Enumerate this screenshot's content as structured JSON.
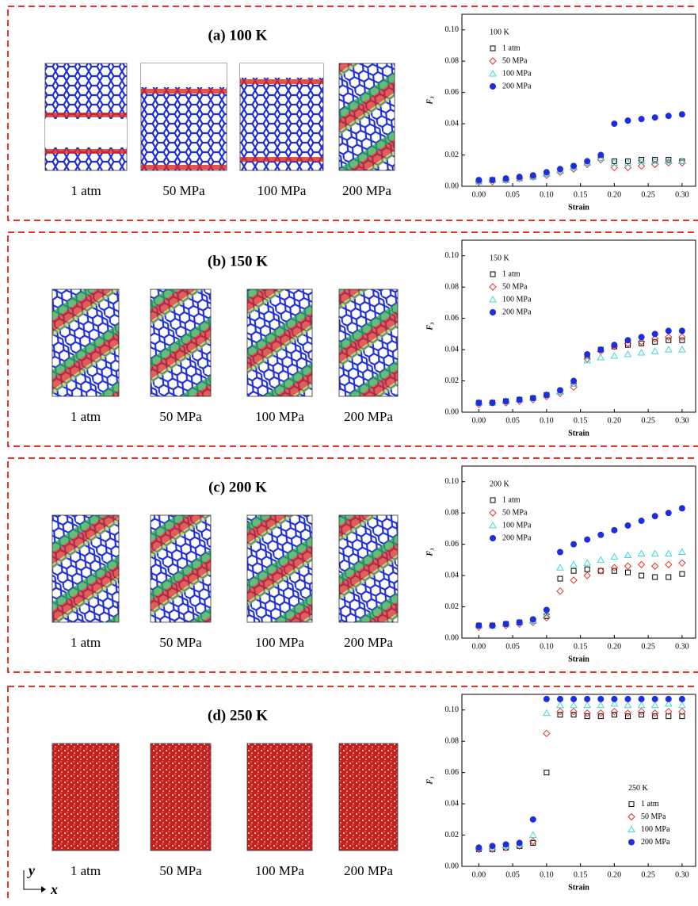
{
  "panels": [
    {
      "title": "(a) 100 K",
      "snapshot_labels": [
        "1 atm",
        "50 MPa",
        "100 MPa",
        "200 MPa"
      ]
    },
    {
      "title": "(b) 150 K",
      "snapshot_labels": [
        "1 atm",
        "50 MPa",
        "100 MPa",
        "200 MPa"
      ]
    },
    {
      "title": "(c) 200 K",
      "snapshot_labels": [
        "1 atm",
        "50 MPa",
        "100 MPa",
        "200 MPa"
      ]
    },
    {
      "title": "(d) 250 K",
      "snapshot_labels": [
        "1 atm",
        "50 MPa",
        "100 MPa",
        "200 MPa"
      ]
    }
  ],
  "coordinate_axes": {
    "y": "y",
    "x": "x"
  },
  "chart_data": [
    {
      "type": "scatter",
      "annotation": "100 K",
      "x_label": "Strain",
      "y_label": "F₃",
      "legend": "upper left",
      "xlim": [
        -0.025,
        0.32
      ],
      "ylim": [
        0,
        0.11
      ],
      "xticks": [
        {
          "value": 0,
          "label": "0.00"
        },
        0.05,
        {
          "value": 0.1,
          "label": "0.10"
        },
        0.15,
        {
          "value": 0.2,
          "label": "0.20"
        },
        0.25,
        {
          "value": 0.3,
          "label": "0.30"
        }
      ],
      "yticks": [
        {
          "value": 0,
          "label": "0.00"
        },
        0.02,
        0.04,
        0.06,
        0.08,
        {
          "value": 0.1,
          "label": "0.10"
        }
      ],
      "x": [
        0,
        0.02,
        0.04,
        0.06,
        0.08,
        0.1,
        0.12,
        0.14,
        0.16,
        0.18,
        0.2,
        0.22,
        0.24,
        0.26,
        0.28,
        0.3
      ],
      "series": [
        {
          "name": "1 atm",
          "color": "#000000",
          "marker": "square",
          "values": [
            0.003,
            0.004,
            0.004,
            0.005,
            0.006,
            0.008,
            0.01,
            0.012,
            0.015,
            0.018,
            0.016,
            0.016,
            0.017,
            0.017,
            0.017,
            0.016
          ]
        },
        {
          "name": "50 MPa",
          "color": "#e8322a",
          "marker": "diamond",
          "values": [
            0.003,
            0.003,
            0.004,
            0.005,
            0.006,
            0.007,
            0.009,
            0.011,
            0.014,
            0.017,
            0.012,
            0.012,
            0.013,
            0.014,
            0.015,
            0.015
          ]
        },
        {
          "name": "100 MPa",
          "color": "#3fd8d8",
          "marker": "triangle",
          "values": [
            0.003,
            0.004,
            0.004,
            0.005,
            0.006,
            0.008,
            0.01,
            0.012,
            0.015,
            0.018,
            0.015,
            0.015,
            0.016,
            0.016,
            0.016,
            0.016
          ]
        },
        {
          "name": "200 MPa",
          "color": "#1d2de0",
          "marker": "circle",
          "values": [
            0.004,
            0.004,
            0.005,
            0.006,
            0.007,
            0.009,
            0.011,
            0.013,
            0.016,
            0.02,
            0.04,
            0.042,
            0.043,
            0.044,
            0.045,
            0.046
          ]
        }
      ]
    },
    {
      "type": "scatter",
      "annotation": "150 K",
      "x_label": "Strain",
      "y_label": "F₃",
      "legend": "upper left",
      "xlim": [
        -0.025,
        0.32
      ],
      "ylim": [
        0,
        0.11
      ],
      "xticks": [
        {
          "value": 0,
          "label": "0.00"
        },
        0.05,
        {
          "value": 0.1,
          "label": "0.10"
        },
        0.15,
        {
          "value": 0.2,
          "label": "0.20"
        },
        0.25,
        {
          "value": 0.3,
          "label": "0.30"
        }
      ],
      "yticks": [
        {
          "value": 0,
          "label": "0.00"
        },
        0.02,
        0.04,
        0.06,
        0.08,
        {
          "value": 0.1,
          "label": "0.10"
        }
      ],
      "x": [
        0,
        0.02,
        0.04,
        0.06,
        0.08,
        0.1,
        0.12,
        0.14,
        0.16,
        0.18,
        0.2,
        0.22,
        0.24,
        0.26,
        0.28,
        0.3
      ],
      "series": [
        {
          "name": "1 atm",
          "color": "#000000",
          "marker": "square",
          "values": [
            0.006,
            0.006,
            0.007,
            0.008,
            0.009,
            0.011,
            0.013,
            0.018,
            0.036,
            0.04,
            0.042,
            0.043,
            0.044,
            0.045,
            0.046,
            0.046
          ]
        },
        {
          "name": "50 MPa",
          "color": "#e8322a",
          "marker": "diamond",
          "values": [
            0.005,
            0.006,
            0.006,
            0.007,
            0.008,
            0.01,
            0.012,
            0.016,
            0.034,
            0.039,
            0.042,
            0.044,
            0.045,
            0.047,
            0.048,
            0.048
          ]
        },
        {
          "name": "100 MPa",
          "color": "#3fd8d8",
          "marker": "triangle",
          "values": [
            0.006,
            0.006,
            0.007,
            0.008,
            0.009,
            0.011,
            0.013,
            0.018,
            0.033,
            0.035,
            0.036,
            0.037,
            0.038,
            0.039,
            0.04,
            0.04
          ]
        },
        {
          "name": "200 MPa",
          "color": "#1d2de0",
          "marker": "circle",
          "values": [
            0.006,
            0.006,
            0.007,
            0.008,
            0.009,
            0.011,
            0.014,
            0.02,
            0.037,
            0.04,
            0.043,
            0.046,
            0.048,
            0.05,
            0.052,
            0.052
          ]
        }
      ]
    },
    {
      "type": "scatter",
      "annotation": "200 K",
      "x_label": "Strain",
      "y_label": "F₃",
      "legend": "upper left",
      "xlim": [
        -0.025,
        0.32
      ],
      "ylim": [
        0,
        0.11
      ],
      "xticks": [
        {
          "value": 0,
          "label": "0.00"
        },
        0.05,
        {
          "value": 0.1,
          "label": "0.10"
        },
        0.15,
        {
          "value": 0.2,
          "label": "0.20"
        },
        0.25,
        {
          "value": 0.3,
          "label": "0.30"
        }
      ],
      "yticks": [
        {
          "value": 0,
          "label": "0.00"
        },
        0.02,
        0.04,
        0.06,
        0.08,
        {
          "value": 0.1,
          "label": "0.10"
        }
      ],
      "x": [
        0,
        0.02,
        0.04,
        0.06,
        0.08,
        0.1,
        0.12,
        0.14,
        0.16,
        0.18,
        0.2,
        0.22,
        0.24,
        0.26,
        0.28,
        0.3
      ],
      "series": [
        {
          "name": "1 atm",
          "color": "#000000",
          "marker": "square",
          "values": [
            0.008,
            0.008,
            0.009,
            0.01,
            0.011,
            0.014,
            0.038,
            0.043,
            0.044,
            0.043,
            0.043,
            0.042,
            0.04,
            0.039,
            0.039,
            0.041
          ]
        },
        {
          "name": "50 MPa",
          "color": "#e8322a",
          "marker": "diamond",
          "values": [
            0.007,
            0.008,
            0.008,
            0.009,
            0.01,
            0.013,
            0.03,
            0.037,
            0.04,
            0.043,
            0.045,
            0.046,
            0.047,
            0.046,
            0.047,
            0.048
          ]
        },
        {
          "name": "100 MPa",
          "color": "#3fd8d8",
          "marker": "triangle",
          "values": [
            0.008,
            0.008,
            0.009,
            0.01,
            0.011,
            0.015,
            0.045,
            0.047,
            0.048,
            0.05,
            0.052,
            0.053,
            0.054,
            0.054,
            0.054,
            0.055
          ]
        },
        {
          "name": "200 MPa",
          "color": "#1d2de0",
          "marker": "circle",
          "values": [
            0.008,
            0.008,
            0.009,
            0.01,
            0.012,
            0.018,
            0.055,
            0.06,
            0.063,
            0.066,
            0.069,
            0.072,
            0.075,
            0.078,
            0.08,
            0.083
          ]
        }
      ]
    },
    {
      "type": "scatter",
      "annotation": "250 K",
      "x_label": "Strain",
      "y_label": "F₃",
      "legend": "center right",
      "xlim": [
        -0.025,
        0.32
      ],
      "ylim": [
        0,
        0.11
      ],
      "xticks": [
        {
          "value": 0,
          "label": "0.00"
        },
        0.05,
        {
          "value": 0.1,
          "label": "0.10"
        },
        0.15,
        {
          "value": 0.2,
          "label": "0.20"
        },
        0.25,
        {
          "value": 0.3,
          "label": "0.30"
        }
      ],
      "yticks": [
        {
          "value": 0,
          "label": "0.00"
        },
        0.02,
        0.04,
        0.06,
        0.08,
        {
          "value": 0.1,
          "label": "0.10"
        }
      ],
      "x": [
        0,
        0.02,
        0.04,
        0.06,
        0.08,
        0.1,
        0.12,
        0.14,
        0.16,
        0.18,
        0.2,
        0.22,
        0.24,
        0.26,
        0.28,
        0.3
      ],
      "series": [
        {
          "name": "1 atm",
          "color": "#000000",
          "marker": "square",
          "values": [
            0.011,
            0.011,
            0.012,
            0.013,
            0.015,
            0.06,
            0.097,
            0.097,
            0.096,
            0.096,
            0.097,
            0.096,
            0.097,
            0.096,
            0.096,
            0.096
          ]
        },
        {
          "name": "50 MPa",
          "color": "#e8322a",
          "marker": "diamond",
          "values": [
            0.011,
            0.011,
            0.012,
            0.013,
            0.016,
            0.085,
            0.099,
            0.099,
            0.098,
            0.098,
            0.099,
            0.098,
            0.099,
            0.098,
            0.099,
            0.099
          ]
        },
        {
          "name": "100 MPa",
          "color": "#3fd8d8",
          "marker": "triangle",
          "values": [
            0.012,
            0.012,
            0.013,
            0.014,
            0.02,
            0.098,
            0.103,
            0.103,
            0.103,
            0.103,
            0.104,
            0.103,
            0.103,
            0.103,
            0.104,
            0.103
          ]
        },
        {
          "name": "200 MPa",
          "color": "#1d2de0",
          "marker": "circle",
          "values": [
            0.012,
            0.013,
            0.014,
            0.015,
            0.03,
            0.107,
            0.107,
            0.107,
            0.107,
            0.107,
            0.107,
            0.107,
            0.107,
            0.107,
            0.107,
            0.107
          ]
        }
      ]
    }
  ]
}
